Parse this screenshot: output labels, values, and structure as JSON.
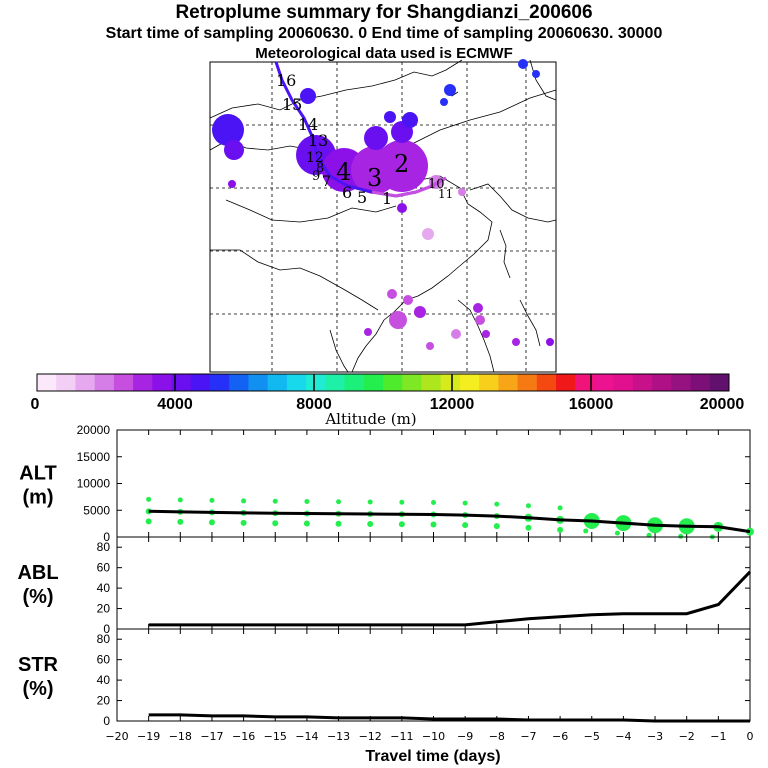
{
  "header": {
    "title": "Retroplume summary for Shangdianzi_200606",
    "sampling": "Start time of sampling 20060630.     0     End time of sampling 20060630. 30000",
    "met": "Meteorological data used is ECMWF"
  },
  "colorbar": {
    "ticks": [
      "0",
      "4000",
      "8000",
      "12000",
      "16000",
      "20000"
    ],
    "label": "Altitude (m)",
    "colors": [
      "#fbe8fb",
      "#f3cef5",
      "#e6a8ef",
      "#d67ee8",
      "#c64fe0",
      "#a824e3",
      "#8c10e8",
      "#6a0ff0",
      "#4a14f4",
      "#2630f7",
      "#1462f4",
      "#1190f2",
      "#12b8f0",
      "#18d8ec",
      "#20ecd4",
      "#1ef0a8",
      "#1cf07a",
      "#24ee4e",
      "#4eea2c",
      "#7ee824",
      "#aee61e",
      "#d6ea1c",
      "#f4ee20",
      "#f8d01c",
      "#f8a618",
      "#f67a14",
      "#f44a12",
      "#f01818",
      "#f0147a",
      "#ec1290",
      "#e0108e",
      "#c8108a",
      "#b01086",
      "#961280",
      "#7c1078",
      "#62106e"
    ]
  },
  "map": {
    "labels": [
      "16",
      "15",
      "14",
      "13",
      "12",
      "11",
      "10",
      "9",
      "8",
      "7",
      "6",
      "5",
      "4",
      "3",
      "2",
      "1"
    ]
  },
  "chart_data": [
    {
      "type": "line",
      "panel": "ALT",
      "ylabel": [
        "ALT",
        "(m)"
      ],
      "yticks": [
        "20000",
        "15000",
        "10000",
        "5000",
        "0"
      ],
      "ylim": [
        0,
        20000
      ],
      "x": [
        -19,
        -18,
        -17,
        -16,
        -15,
        -14,
        -13,
        -12,
        -11,
        -10,
        -9,
        -8,
        -7,
        -6,
        -5,
        -4,
        -3,
        -2,
        -1,
        0
      ],
      "values": [
        4800,
        4700,
        4600,
        4500,
        4450,
        4400,
        4350,
        4300,
        4250,
        4200,
        4100,
        3900,
        3600,
        3200,
        3000,
        2600,
        2200,
        2000,
        1900,
        1000
      ]
    },
    {
      "type": "line",
      "panel": "ABL",
      "ylabel": [
        "ABL",
        "(%)"
      ],
      "yticks": [
        "80",
        "60",
        "40",
        "20",
        "0"
      ],
      "ylim": [
        0,
        90
      ],
      "x": [
        -19,
        -18,
        -17,
        -16,
        -15,
        -14,
        -13,
        -12,
        -11,
        -10,
        -9,
        -8,
        -7,
        -6,
        -5,
        -4,
        -3,
        -2,
        -1,
        0
      ],
      "values": [
        4,
        4,
        4,
        4,
        4,
        4,
        4,
        4,
        4,
        4,
        4,
        7,
        10,
        12,
        14,
        15,
        15,
        15,
        24,
        56
      ]
    },
    {
      "type": "line",
      "panel": "STR",
      "ylabel": [
        "STR",
        "(%)"
      ],
      "yticks": [
        "80",
        "60",
        "40",
        "20",
        "0"
      ],
      "ylim": [
        0,
        90
      ],
      "xlabel": "Travel time (days)",
      "xticks": [
        "−20",
        "−19",
        "−18",
        "−17",
        "−16",
        "−15",
        "−14",
        "−13",
        "−12",
        "−11",
        "−10",
        "−9",
        "−8",
        "−7",
        "−6",
        "−5",
        "−4",
        "−3",
        "−2",
        "−1",
        "0"
      ],
      "x": [
        -19,
        -18,
        -17,
        -16,
        -15,
        -14,
        -13,
        -12,
        -11,
        -10,
        -9,
        -8,
        -7,
        -6,
        -5,
        -4,
        -3,
        -2,
        -1,
        0
      ],
      "values": [
        6,
        6,
        5,
        5,
        4,
        4,
        3,
        3,
        3,
        2,
        2,
        2,
        1,
        1,
        1,
        1,
        0,
        0,
        0,
        0
      ]
    }
  ]
}
